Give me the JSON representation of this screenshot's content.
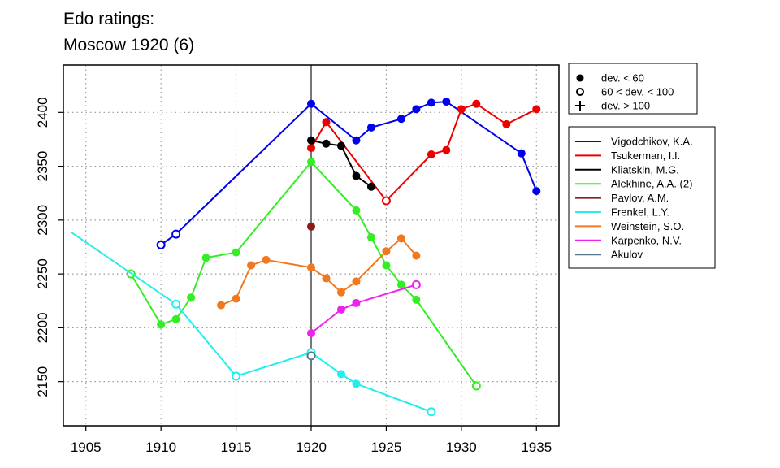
{
  "chart_data": {
    "type": "line",
    "title": "Edo ratings:",
    "subtitle": "Moscow 1920 (6)",
    "xlabel": "",
    "ylabel": "",
    "xlim": [
      1903.5,
      1936.5
    ],
    "ylim": [
      2109,
      2444
    ],
    "x_ticks": [
      1905,
      1910,
      1915,
      1920,
      1925,
      1930,
      1935
    ],
    "y_ticks": [
      2150,
      2200,
      2250,
      2300,
      2350,
      2400
    ],
    "grid": true,
    "marker_line_x": 1920,
    "marker_legend": [
      {
        "symbol": "filled-circle",
        "label": "dev. < 60"
      },
      {
        "symbol": "open-circle",
        "label": "60 < dev. < 100"
      },
      {
        "symbol": "plus",
        "label": "dev. > 100"
      }
    ],
    "legend_placement": "right",
    "series": [
      {
        "name": "Vigodchikov, K.A.",
        "color": "#0000ee",
        "points": [
          {
            "x": 1910,
            "y": 2277,
            "m": "open"
          },
          {
            "x": 1911,
            "y": 2287,
            "m": "open"
          },
          {
            "x": 1920,
            "y": 2408,
            "m": "filled"
          },
          {
            "x": 1923,
            "y": 2374,
            "m": "filled"
          },
          {
            "x": 1924,
            "y": 2386,
            "m": "filled"
          },
          {
            "x": 1926,
            "y": 2394,
            "m": "filled"
          },
          {
            "x": 1927,
            "y": 2403,
            "m": "filled"
          },
          {
            "x": 1928,
            "y": 2409,
            "m": "filled"
          },
          {
            "x": 1929,
            "y": 2410,
            "m": "filled"
          },
          {
            "x": 1934,
            "y": 2362,
            "m": "filled"
          },
          {
            "x": 1935,
            "y": 2327,
            "m": "filled"
          }
        ]
      },
      {
        "name": "Tsukerman, I.I.",
        "color": "#ee0000",
        "points": [
          {
            "x": 1920,
            "y": 2367,
            "m": "filled"
          },
          {
            "x": 1921,
            "y": 2391,
            "m": "filled"
          },
          {
            "x": 1925,
            "y": 2318,
            "m": "open"
          },
          {
            "x": 1928,
            "y": 2361,
            "m": "filled"
          },
          {
            "x": 1929,
            "y": 2365,
            "m": "filled"
          },
          {
            "x": 1930,
            "y": 2403,
            "m": "filled"
          },
          {
            "x": 1931,
            "y": 2408,
            "m": "filled"
          },
          {
            "x": 1933,
            "y": 2389,
            "m": "filled"
          },
          {
            "x": 1935,
            "y": 2403,
            "m": "filled"
          }
        ]
      },
      {
        "name": "Kliatskin, M.G.",
        "color": "#000000",
        "points": [
          {
            "x": 1920,
            "y": 2374,
            "m": "filled"
          },
          {
            "x": 1921,
            "y": 2371,
            "m": "filled"
          },
          {
            "x": 1922,
            "y": 2369,
            "m": "filled"
          },
          {
            "x": 1923,
            "y": 2341,
            "m": "filled"
          },
          {
            "x": 1924,
            "y": 2331,
            "m": "filled"
          }
        ]
      },
      {
        "name": "Alekhine, A.A. (2)",
        "color": "#33ee22",
        "points": [
          {
            "x": 1908,
            "y": 2250,
            "m": "open"
          },
          {
            "x": 1910,
            "y": 2203,
            "m": "filled"
          },
          {
            "x": 1911,
            "y": 2208,
            "m": "filled"
          },
          {
            "x": 1912,
            "y": 2228,
            "m": "filled"
          },
          {
            "x": 1913,
            "y": 2265,
            "m": "filled"
          },
          {
            "x": 1915,
            "y": 2270,
            "m": "filled"
          },
          {
            "x": 1920,
            "y": 2354,
            "m": "filled"
          },
          {
            "x": 1923,
            "y": 2309,
            "m": "filled"
          },
          {
            "x": 1924,
            "y": 2284,
            "m": "filled"
          },
          {
            "x": 1925,
            "y": 2258,
            "m": "filled"
          },
          {
            "x": 1926,
            "y": 2240,
            "m": "filled"
          },
          {
            "x": 1927,
            "y": 2226,
            "m": "filled"
          },
          {
            "x": 1931,
            "y": 2146,
            "m": "open"
          }
        ]
      },
      {
        "name": "Pavlov, A.M.",
        "color": "#8b1a1a",
        "points": [
          {
            "x": 1920,
            "y": 2294,
            "m": "filled"
          }
        ]
      },
      {
        "name": "Frenkel, L.Y.",
        "color": "#22eeee",
        "points": [
          {
            "x": 1904,
            "y": 2289,
            "m": "none"
          },
          {
            "x": 1911,
            "y": 2222,
            "m": "open"
          },
          {
            "x": 1915,
            "y": 2155,
            "m": "open"
          },
          {
            "x": 1920,
            "y": 2177,
            "m": "open"
          },
          {
            "x": 1922,
            "y": 2157,
            "m": "filled"
          },
          {
            "x": 1923,
            "y": 2148,
            "m": "filled"
          },
          {
            "x": 1928,
            "y": 2122,
            "m": "open"
          }
        ]
      },
      {
        "name": "Weinstein, S.O.",
        "color": "#f07820",
        "points": [
          {
            "x": 1914,
            "y": 2221,
            "m": "filled"
          },
          {
            "x": 1915,
            "y": 2227,
            "m": "filled"
          },
          {
            "x": 1916,
            "y": 2258,
            "m": "filled"
          },
          {
            "x": 1917,
            "y": 2263,
            "m": "filled"
          },
          {
            "x": 1920,
            "y": 2256,
            "m": "filled"
          },
          {
            "x": 1921,
            "y": 2246,
            "m": "filled"
          },
          {
            "x": 1922,
            "y": 2233,
            "m": "filled"
          },
          {
            "x": 1923,
            "y": 2243,
            "m": "filled"
          },
          {
            "x": 1925,
            "y": 2271,
            "m": "filled"
          },
          {
            "x": 1926,
            "y": 2283,
            "m": "filled"
          },
          {
            "x": 1927,
            "y": 2267,
            "m": "filled"
          }
        ]
      },
      {
        "name": "Karpenko, N.V.",
        "color": "#ee22ee",
        "points": [
          {
            "x": 1920,
            "y": 2195,
            "m": "filled"
          },
          {
            "x": 1922,
            "y": 2217,
            "m": "filled"
          },
          {
            "x": 1923,
            "y": 2223,
            "m": "filled"
          },
          {
            "x": 1927,
            "y": 2240,
            "m": "open"
          }
        ]
      },
      {
        "name": "Akulov",
        "color": "#557788",
        "points": [
          {
            "x": 1920,
            "y": 2174,
            "m": "open"
          }
        ]
      }
    ]
  }
}
